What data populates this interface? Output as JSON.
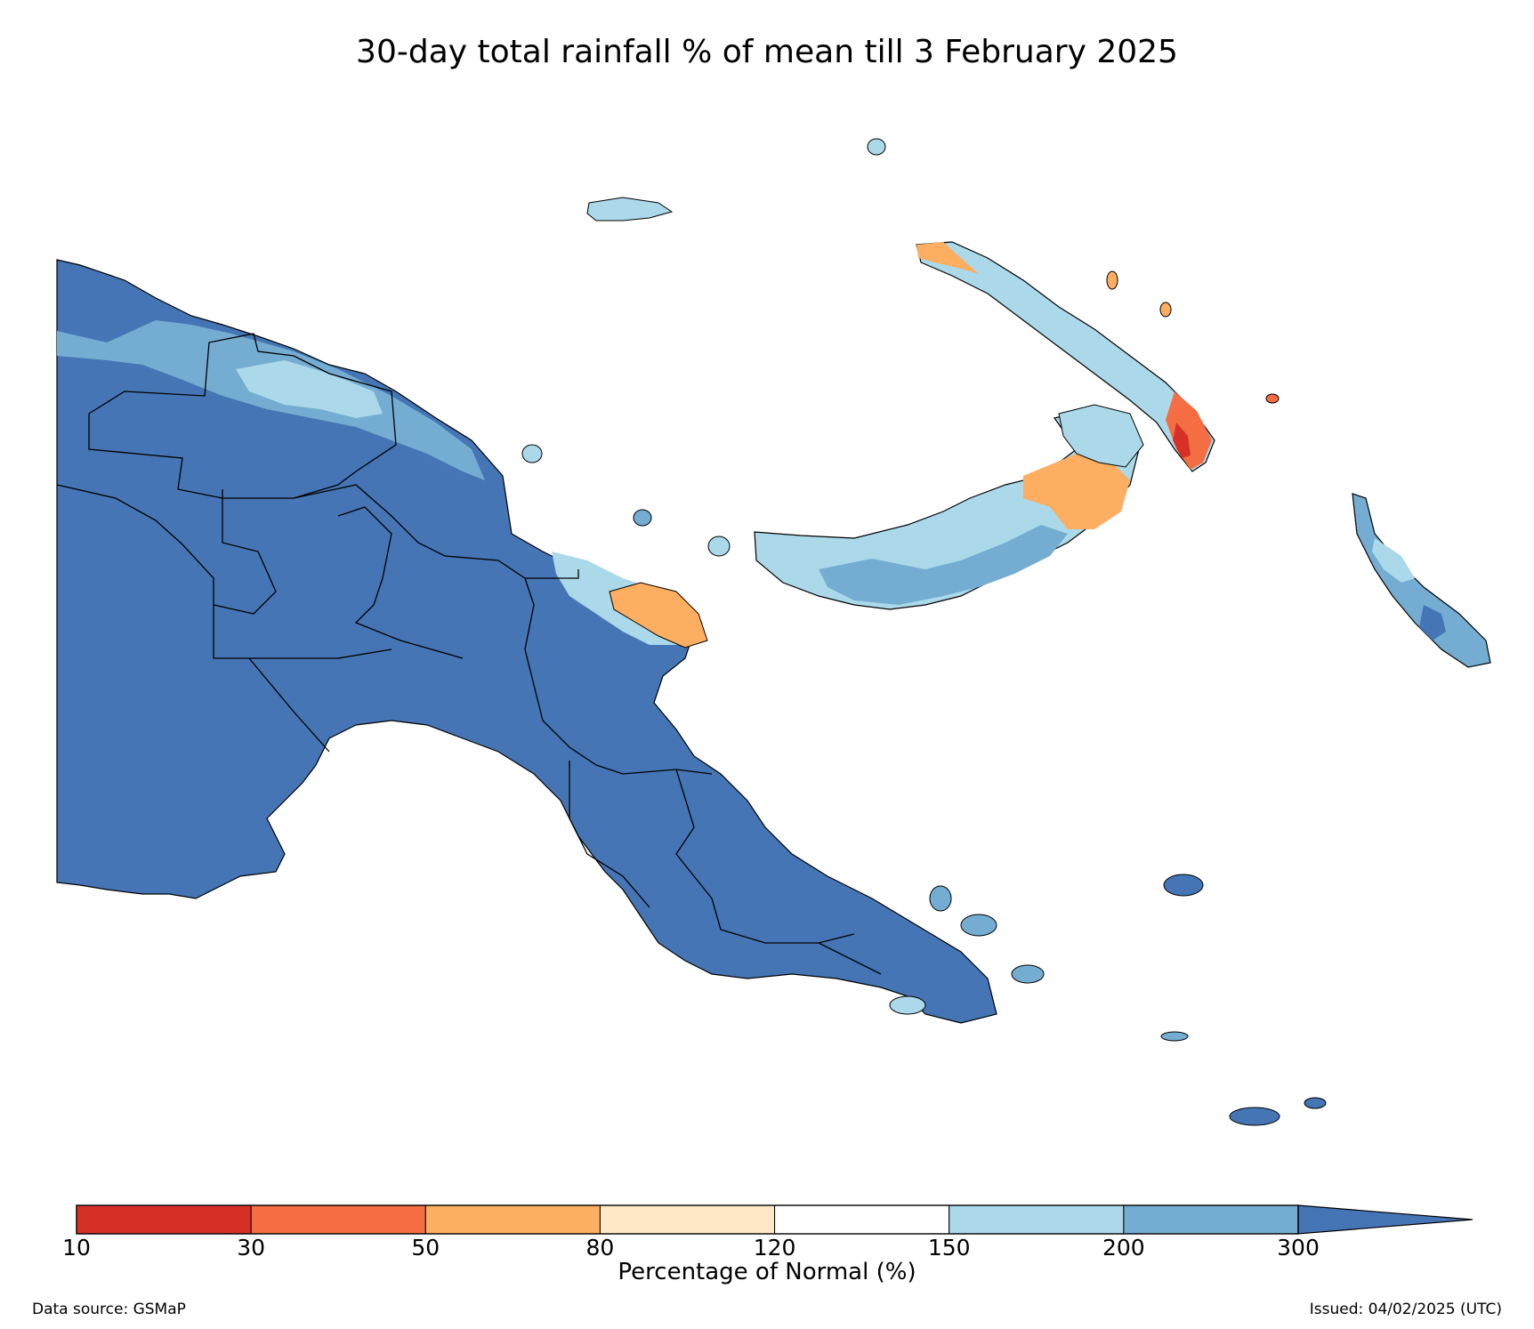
{
  "title": "30-day total rainfall % of mean till 3 February 2025",
  "colorbar": {
    "label": "Percentage of Normal (%)",
    "ticks": [
      "10",
      "30",
      "50",
      "80",
      "120",
      "150",
      "200",
      "300"
    ],
    "bins": [
      {
        "from": "10",
        "to": "30",
        "color": "#d73027"
      },
      {
        "from": "30",
        "to": "50",
        "color": "#f46d43"
      },
      {
        "from": "50",
        "to": "80",
        "color": "#fdae61"
      },
      {
        "from": "80",
        "to": "120",
        "color": "#fee8c8"
      },
      {
        "from": "120",
        "to": "150",
        "color": "#ffffff"
      },
      {
        "from": "150",
        "to": "200",
        "color": "#abd9e9"
      },
      {
        "from": "200",
        "to": "300",
        "color": "#74add1"
      },
      {
        "from": "300",
        "to": "",
        "color": "#4575b4"
      }
    ]
  },
  "regions": [
    {
      "name": "mainland",
      "dominant_range": "300+",
      "color": "#4575b4"
    },
    {
      "name": "north-coast-band",
      "dominant_range": "150-300",
      "color": "#abd9e9"
    },
    {
      "name": "madang-peninsula",
      "dominant_range": "50-80",
      "color": "#fdae61"
    },
    {
      "name": "new-britain",
      "dominant_range": "150-300",
      "color": "#abd9e9"
    },
    {
      "name": "new-ireland-south",
      "dominant_range": "10-50",
      "color": "#f46d43"
    },
    {
      "name": "bougainville",
      "dominant_range": "150-300",
      "color": "#74add1"
    }
  ],
  "footer": {
    "source": "Data source: GSMaP",
    "issued": "Issued: 04/02/2025 (UTC)"
  }
}
